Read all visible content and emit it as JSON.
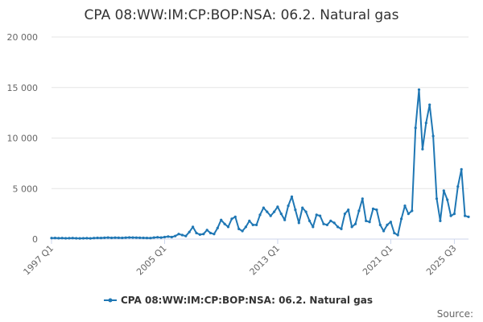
{
  "chart_data": {
    "type": "line",
    "title": "CPA 08:WW:IM:CP:BOP:NSA: 06.2. Natural gas",
    "xlabel": "",
    "ylabel": "",
    "ylim": [
      0,
      20000
    ],
    "y_ticks": [
      {
        "value": 0,
        "label": "0"
      },
      {
        "value": 5000,
        "label": "5 000"
      },
      {
        "value": 10000,
        "label": "10 000"
      },
      {
        "value": 15000,
        "label": "15 000"
      },
      {
        "value": 20000,
        "label": "20 000"
      }
    ],
    "x_ticks": [
      {
        "index": 0,
        "label": "1997 Q1"
      },
      {
        "index": 32,
        "label": "2005 Q1"
      },
      {
        "index": 64,
        "label": "2013 Q1"
      },
      {
        "index": 96,
        "label": "2021 Q1"
      },
      {
        "index": 114,
        "label": "2025 Q3"
      }
    ],
    "grid": true,
    "legend_position": "bottom-center",
    "color": "#1f77b4",
    "series": [
      {
        "name": "CPA 08:WW:IM:CP:BOP:NSA: 06.2. Natural gas",
        "values": [
          100,
          110,
          90,
          100,
          80,
          90,
          100,
          80,
          70,
          80,
          90,
          70,
          100,
          120,
          110,
          130,
          150,
          120,
          140,
          130,
          120,
          140,
          160,
          150,
          140,
          130,
          120,
          110,
          100,
          150,
          180,
          150,
          200,
          250,
          200,
          300,
          500,
          400,
          300,
          700,
          1200,
          600,
          450,
          500,
          900,
          600,
          500,
          1100,
          1900,
          1500,
          1200,
          2000,
          2200,
          1000,
          800,
          1200,
          1800,
          1400,
          1400,
          2400,
          3100,
          2700,
          2300,
          2700,
          3200,
          2500,
          1900,
          3300,
          4200,
          2900,
          1600,
          3100,
          2700,
          1800,
          1200,
          2400,
          2300,
          1500,
          1400,
          1800,
          1600,
          1200,
          1000,
          2500,
          2900,
          1200,
          1500,
          2800,
          4000,
          1800,
          1700,
          3000,
          2900,
          1400,
          800,
          1400,
          1700,
          600,
          400,
          2000,
          3300,
          2500,
          2800,
          11000,
          14800,
          8900,
          11500,
          13300,
          10200,
          4000,
          1800,
          4800,
          3900,
          2300,
          2500,
          5200,
          6900,
          2300,
          2200
        ]
      }
    ]
  },
  "legend": {
    "label": "CPA 08:WW:IM:CP:BOP:NSA: 06.2. Natural gas"
  },
  "source": {
    "label": "Source:"
  }
}
